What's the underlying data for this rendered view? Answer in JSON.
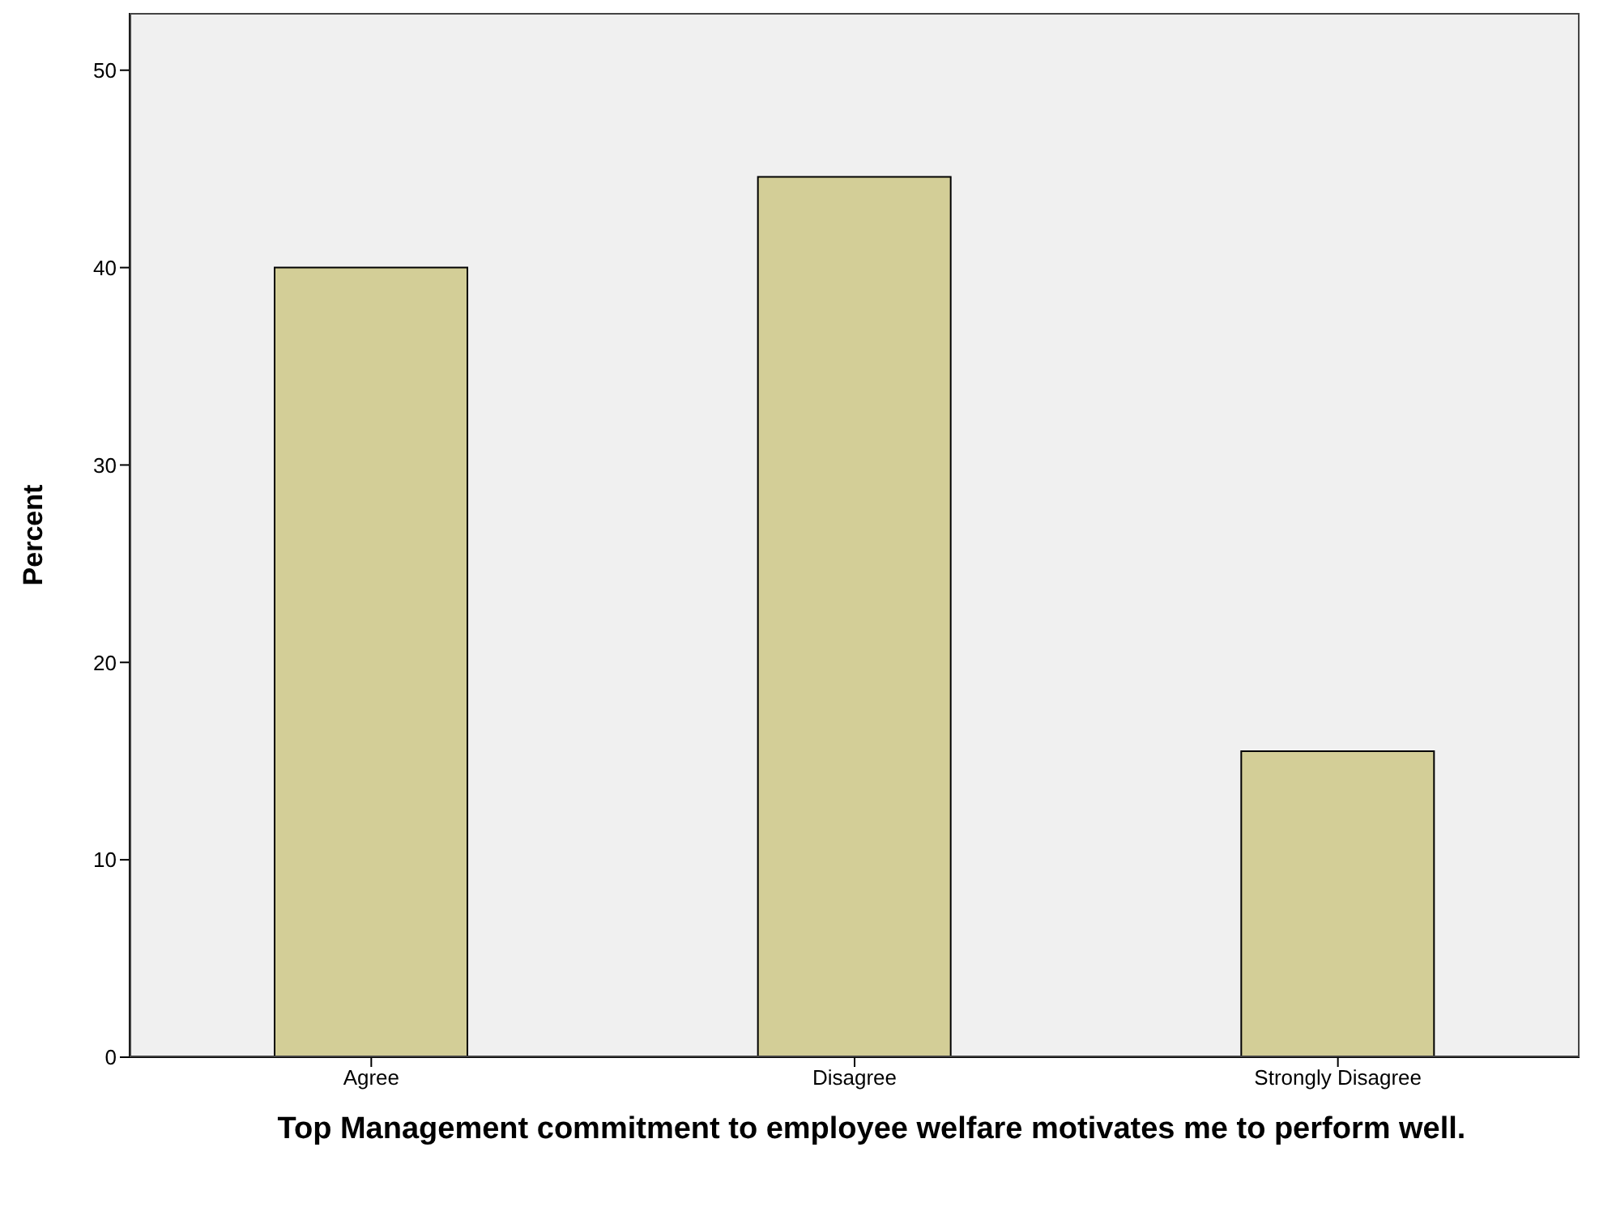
{
  "chart_data": {
    "type": "bar",
    "xlabel": "Top Management commitment to employee welfare motivates me to perform well.",
    "ylabel": "Percent",
    "categories": [
      "Agree",
      "Disagree",
      "Strongly Disagree"
    ],
    "values": [
      40.0,
      44.6,
      15.5
    ],
    "color": "#d3ce97",
    "ylim": [
      0,
      52.9
    ],
    "yticks": [
      0,
      10,
      20,
      30,
      40,
      50
    ],
    "grid": false
  }
}
